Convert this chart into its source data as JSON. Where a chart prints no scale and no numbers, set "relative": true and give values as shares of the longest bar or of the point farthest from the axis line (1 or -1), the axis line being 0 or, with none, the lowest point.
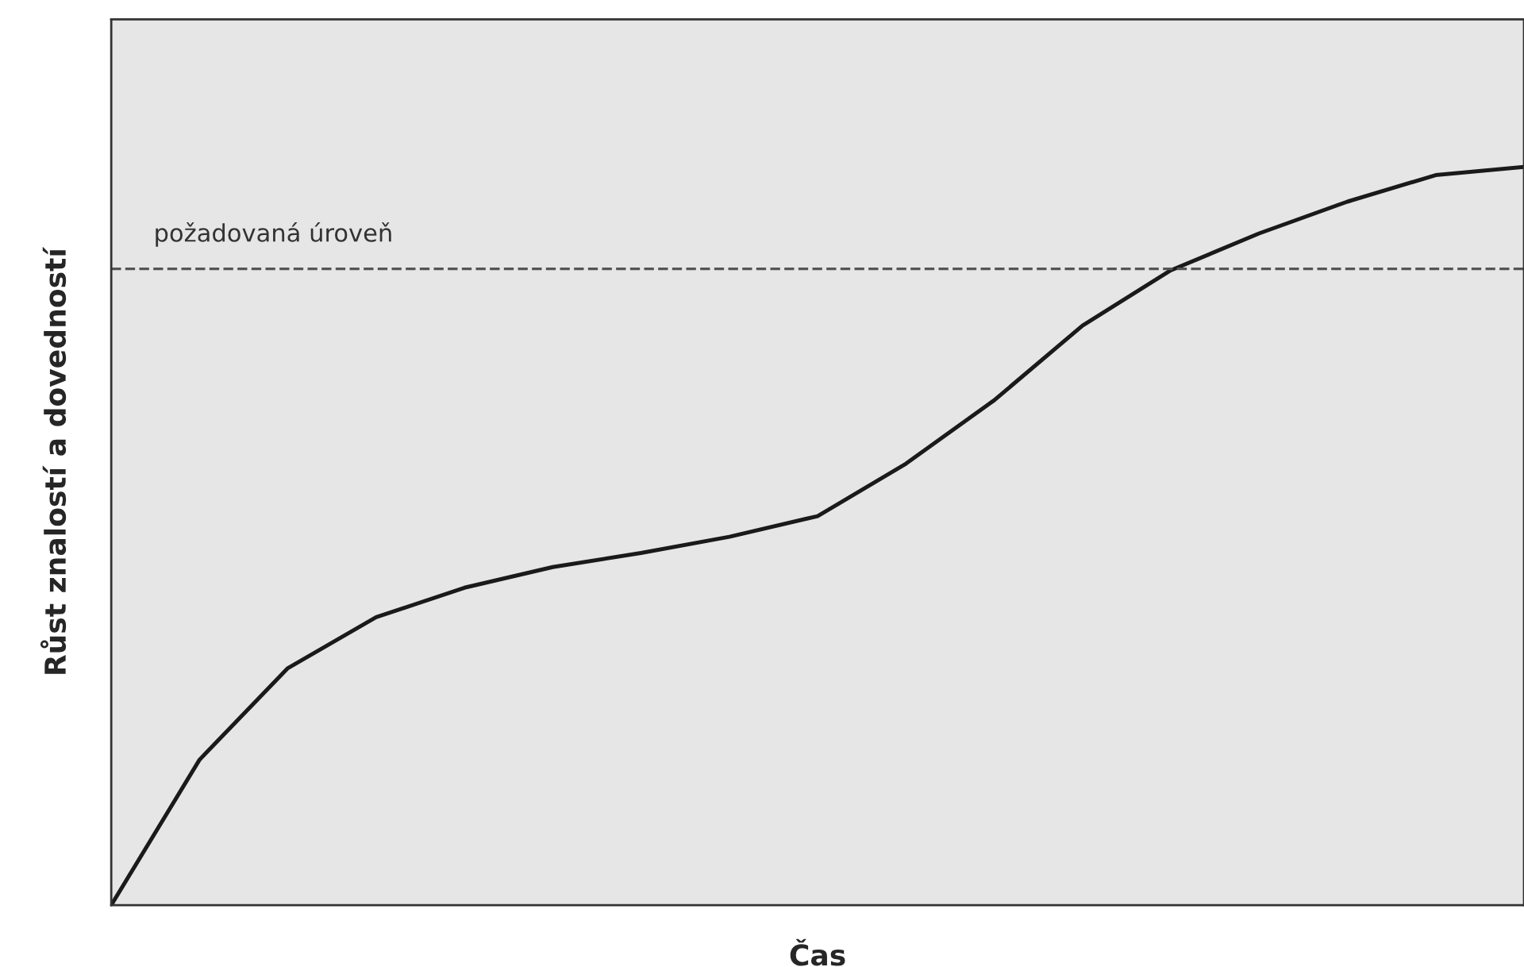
{
  "chart_data": {
    "type": "line",
    "relative": true,
    "xlabel": "Čas",
    "ylabel": "Růst znalostí a dovedností",
    "categories": [
      null,
      null,
      null,
      null,
      null,
      null,
      null,
      null,
      null,
      null,
      null,
      null,
      null,
      null,
      null,
      null,
      null
    ],
    "series": [
      {
        "color": "#1a1a1a",
        "values": [
          0,
          0.197,
          0.321,
          0.39,
          0.43,
          0.458,
          0.477,
          0.499,
          0.527,
          0.598,
          0.684,
          0.785,
          0.86,
          0.91,
          0.953,
          0.989,
          1
        ]
      }
    ],
    "ref_lines": [
      {
        "axis": "y",
        "value": 0.862,
        "label": "požadovaná úroveň",
        "color": "#555555",
        "line_style": "dashed"
      }
    ],
    "marker": "none",
    "line_style": "solid"
  }
}
